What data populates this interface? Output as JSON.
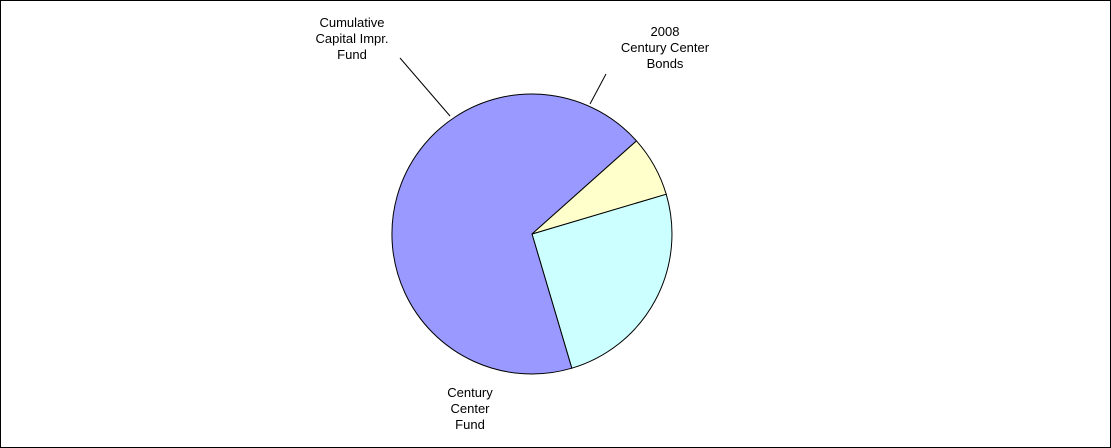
{
  "chart_data": {
    "type": "pie",
    "title": "",
    "slices": [
      {
        "label": "2008\nCentury Center\nBonds",
        "value": 25,
        "color": "#ccffff"
      },
      {
        "label": "Century\nCenter\nFund",
        "value": 68,
        "color": "#9999ff"
      },
      {
        "label": "Cumulative\nCapital Impr.\nFund",
        "value": 7,
        "color": "#ffffcc"
      }
    ],
    "start_angle_deg": 16.5,
    "direction": "clockwise",
    "legend": "none",
    "label_style": "outside-with-leader-lines"
  }
}
